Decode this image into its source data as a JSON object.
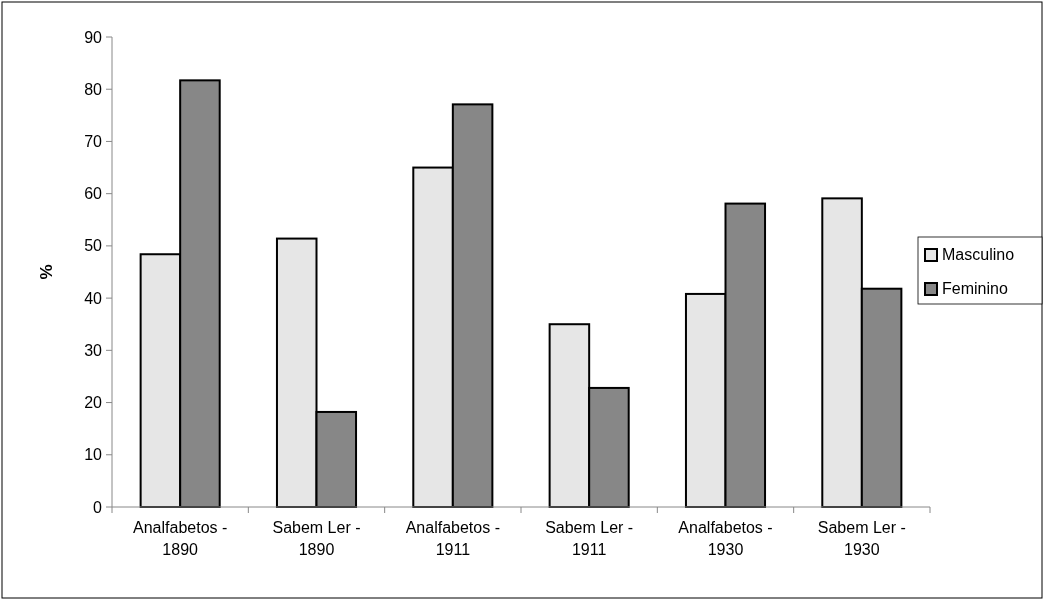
{
  "chart_data": {
    "type": "bar",
    "ylabel": "%",
    "categories": [
      "Analfabetos - 1890",
      "Sabem Ler - 1890",
      "Analfabetos - 1911",
      "Sabem Ler - 1911",
      "Analfabetos - 1930",
      "Sabem Ler - 1930"
    ],
    "series": [
      {
        "name": "Masculino",
        "color": "#e6e6e6",
        "values": [
          48.4,
          51.4,
          65.0,
          35.0,
          40.8,
          59.1
        ]
      },
      {
        "name": "Feminino",
        "color": "#878787",
        "values": [
          81.7,
          18.2,
          77.1,
          22.8,
          58.1,
          41.8
        ]
      }
    ],
    "ylim": [
      0,
      90
    ],
    "yticks": [
      0,
      10,
      20,
      30,
      40,
      50,
      60,
      70,
      80,
      90
    ],
    "grid": false,
    "legend": "right"
  }
}
